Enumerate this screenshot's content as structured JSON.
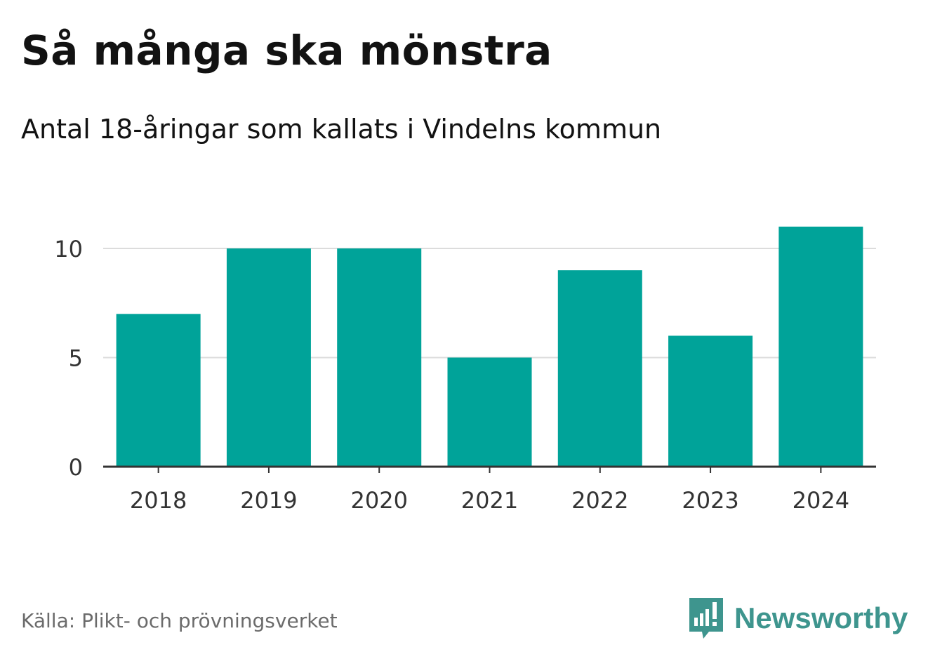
{
  "header": {
    "title": "Så många ska mönstra",
    "subtitle": "Antal 18-åringar som kallats i Vindelns kommun"
  },
  "footer": {
    "source": "Källa: Plikt- och prövningsverket",
    "brand": "Newsworthy"
  },
  "colors": {
    "bar": "#00a399",
    "grid": "#dcdcdc",
    "axis": "#333333",
    "brand": "#3e958e"
  },
  "icons": {
    "logo": "newsworthy-bar-chart-speech-bubble-icon"
  },
  "chart_data": {
    "type": "bar",
    "title": "Så många ska mönstra",
    "subtitle": "Antal 18-åringar som kallats i Vindelns kommun",
    "categories": [
      "2018",
      "2019",
      "2020",
      "2021",
      "2022",
      "2023",
      "2024"
    ],
    "values": [
      7,
      10,
      10,
      5,
      9,
      6,
      11
    ],
    "xlabel": "",
    "ylabel": "",
    "ylim": [
      0,
      11
    ],
    "yticks": [
      0,
      5,
      10
    ],
    "grid": true,
    "legend": "none"
  }
}
